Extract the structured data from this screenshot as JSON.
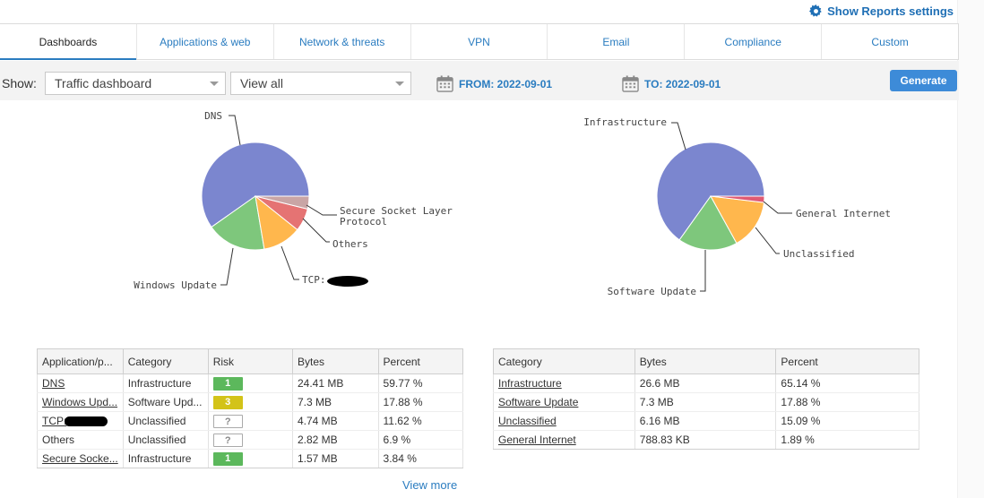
{
  "header": {
    "settings_label": "Show Reports settings",
    "settings_icon": "gear-icon"
  },
  "tabs": [
    {
      "label": "Dashboards",
      "active": true
    },
    {
      "label": "Applications & web",
      "active": false
    },
    {
      "label": "Network & threats",
      "active": false
    },
    {
      "label": "VPN",
      "active": false
    },
    {
      "label": "Email",
      "active": false
    },
    {
      "label": "Compliance",
      "active": false
    },
    {
      "label": "Custom",
      "active": false
    }
  ],
  "filters": {
    "show_label": "Show:",
    "dashboard_select": "Traffic dashboard",
    "view_select": "View all",
    "from_label": "FROM: 2022-09-01",
    "to_label": "TO: 2022-09-01",
    "generate_label": "Generate"
  },
  "colors": {
    "accent": "#2a7cc0",
    "button": "#3d8bd8",
    "risk_low": "#5cb85c",
    "risk_medium": "#d3c318",
    "slice_blue": "#7b86cf",
    "slice_green": "#7ec77c",
    "slice_orange": "#ffb74d",
    "slice_red": "#e57373",
    "slice_grey": "#c9a5a5",
    "slice_pink": "#e05a73"
  },
  "chart_data": [
    {
      "type": "pie",
      "series": [
        {
          "label": "DNS",
          "percent": 59.77,
          "color": "#7b86cf"
        },
        {
          "label": "Windows Update",
          "percent": 17.88,
          "color": "#7ec77c"
        },
        {
          "label": "TCP:",
          "percent": 11.62,
          "color": "#ffb74d"
        },
        {
          "label": "Others",
          "percent": 6.9,
          "color": "#e57373"
        },
        {
          "label": "Secure Socket Layer Protocol",
          "percent": 3.84,
          "color": "#c9a5a5"
        }
      ]
    },
    {
      "type": "pie",
      "series": [
        {
          "label": "Infrastructure",
          "percent": 65.14,
          "color": "#7b86cf"
        },
        {
          "label": "Software Update",
          "percent": 17.88,
          "color": "#7ec77c"
        },
        {
          "label": "Unclassified",
          "percent": 15.09,
          "color": "#ffb74d"
        },
        {
          "label": "General Internet",
          "percent": 1.89,
          "color": "#e05a73"
        }
      ]
    }
  ],
  "app_table": {
    "headers": [
      "Application/p...",
      "Category",
      "Risk",
      "Bytes",
      "Percent"
    ],
    "rows": [
      {
        "name": "DNS",
        "category": "Infrastructure",
        "risk": "1",
        "bytes": "24.41 MB",
        "percent": "59.77 %",
        "link": true,
        "redacted": false
      },
      {
        "name": "Windows Upd...",
        "category": "Software Upd...",
        "risk": "3",
        "bytes": "7.3 MB",
        "percent": "17.88 %",
        "link": true,
        "redacted": false
      },
      {
        "name": "TCP:",
        "category": "Unclassified",
        "risk": "?",
        "bytes": "4.74 MB",
        "percent": "11.62 %",
        "link": true,
        "redacted": true
      },
      {
        "name": "Others",
        "category": "Unclassified",
        "risk": "?",
        "bytes": "2.82 MB",
        "percent": "6.9 %",
        "link": false,
        "redacted": false
      },
      {
        "name": "Secure Socke...",
        "category": "Infrastructure",
        "risk": "1",
        "bytes": "1.57 MB",
        "percent": "3.84 %",
        "link": true,
        "redacted": false
      }
    ]
  },
  "category_table": {
    "headers": [
      "Category",
      "Bytes",
      "Percent"
    ],
    "rows": [
      {
        "name": "Infrastructure",
        "bytes": "26.6 MB",
        "percent": "65.14 %"
      },
      {
        "name": "Software Update",
        "bytes": "7.3 MB",
        "percent": "17.88 %"
      },
      {
        "name": "Unclassified",
        "bytes": "6.16 MB",
        "percent": "15.09 %"
      },
      {
        "name": "General Internet",
        "bytes": "788.83 KB",
        "percent": "1.89 %"
      }
    ]
  },
  "footer": {
    "view_more": "View more"
  }
}
